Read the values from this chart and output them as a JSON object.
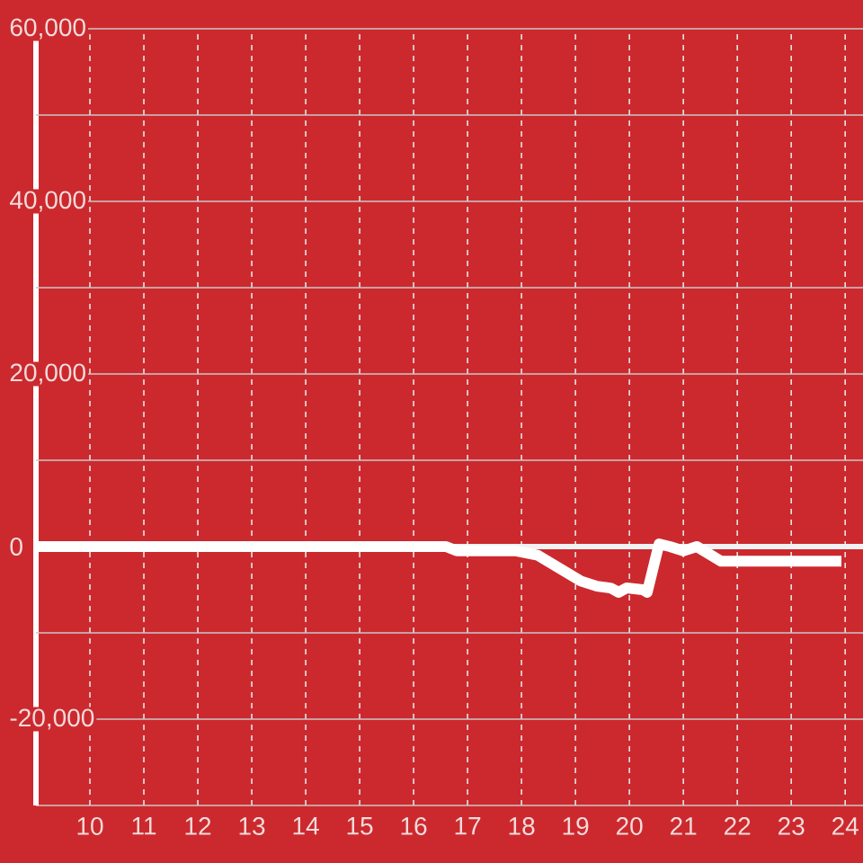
{
  "chart_data": {
    "type": "line",
    "x": [
      9,
      16.6,
      16.8,
      17.9,
      18.3,
      19.1,
      19.4,
      19.65,
      19.8,
      19.95,
      20.25,
      20.33,
      20.55,
      20.75,
      21.0,
      21.25,
      21.7,
      23.93
    ],
    "values": [
      0,
      0,
      -500,
      -500,
      -1000,
      -4000,
      -4600,
      -4800,
      -5300,
      -4800,
      -5000,
      -5300,
      300,
      0,
      -500,
      0,
      -1700,
      -1700
    ],
    "color": "#ffffff",
    "line_style": "solid",
    "xlim": [
      9,
      24.33
    ],
    "xticks": [
      10,
      11,
      12,
      13,
      14,
      15,
      16,
      17,
      18,
      19,
      20,
      21,
      22,
      23,
      24
    ],
    "ylim": [
      -30000,
      60000
    ],
    "yticks": [
      {
        "value": -20000,
        "label": "-20,000"
      },
      {
        "value": -10000,
        "label": null
      },
      0,
      {
        "value": 10000,
        "label": null
      },
      {
        "value": 20000,
        "label": "20,000"
      },
      {
        "value": 30000,
        "label": null
      },
      {
        "value": 40000,
        "label": "40,000"
      },
      {
        "value": 50000,
        "label": null
      },
      {
        "value": 60000,
        "label": "60,000"
      }
    ],
    "grid": true,
    "ref_lines": [
      {
        "axis": "y",
        "value": 0,
        "color": "#f2f2f2"
      }
    ]
  }
}
